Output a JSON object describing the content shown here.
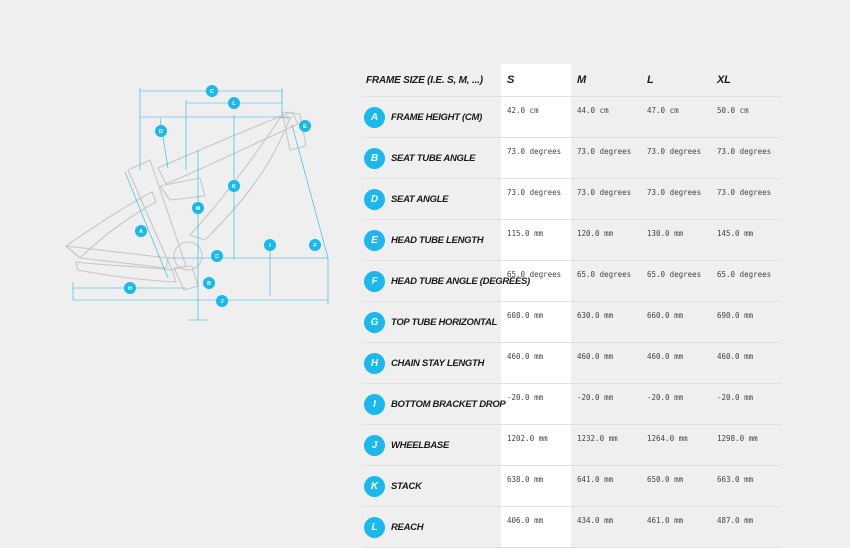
{
  "table": {
    "header": [
      "FRAME SIZE (I.E. S, M, ...)",
      "S",
      "M",
      "L",
      "XL"
    ],
    "rows": [
      {
        "letter": "A",
        "name": "FRAME HEIGHT (CM)",
        "values": [
          "42.0 cm",
          "44.0 cm",
          "47.0 cm",
          "50.0 cm"
        ]
      },
      {
        "letter": "B",
        "name": "SEAT TUBE ANGLE",
        "values": [
          "73.0 degrees",
          "73.0 degrees",
          "73.0 degrees",
          "73.0 degrees"
        ]
      },
      {
        "letter": "D",
        "name": "SEAT ANGLE",
        "values": [
          "73.0 degrees",
          "73.0 degrees",
          "73.0 degrees",
          "73.0 degrees"
        ]
      },
      {
        "letter": "E",
        "name": "HEAD TUBE LENGTH",
        "values": [
          "115.0 mm",
          "120.0 mm",
          "130.0 mm",
          "145.0 mm"
        ]
      },
      {
        "letter": "F",
        "name": "HEAD TUBE ANGLE (DEGREES)",
        "values": [
          "65.0 degrees",
          "65.0 degrees",
          "65.0 degrees",
          "65.0 degrees"
        ]
      },
      {
        "letter": "G",
        "name": "TOP TUBE HORIZONTAL",
        "values": [
          "608.0 mm",
          "630.0 mm",
          "660.0 mm",
          "690.0 mm"
        ]
      },
      {
        "letter": "H",
        "name": "CHAIN STAY LENGTH",
        "values": [
          "460.0 mm",
          "460.0 mm",
          "460.0 mm",
          "460.0 mm"
        ]
      },
      {
        "letter": "I",
        "name": "BOTTOM BRACKET DROP",
        "values": [
          "-20.0 mm",
          "-20.0 mm",
          "-20.0 mm",
          "-20.0 mm"
        ]
      },
      {
        "letter": "J",
        "name": "WHEELBASE",
        "values": [
          "1202.0 mm",
          "1232.0 mm",
          "1264.0 mm",
          "1298.0 mm"
        ]
      },
      {
        "letter": "K",
        "name": "STACK",
        "values": [
          "638.0 mm",
          "641.0 mm",
          "650.0 mm",
          "663.0 mm"
        ]
      },
      {
        "letter": "L",
        "name": "REACH",
        "values": [
          "406.0 mm",
          "434.0 mm",
          "461.0 mm",
          "487.0 mm"
        ]
      }
    ]
  },
  "diagram": {
    "markers": [
      "C",
      "L",
      "D",
      "E",
      "K",
      "M",
      "A",
      "I",
      "F",
      "C",
      "H",
      "B",
      "J"
    ],
    "colors": {
      "accent": "#1ab8ec",
      "frame": "#c9c9c9"
    }
  }
}
